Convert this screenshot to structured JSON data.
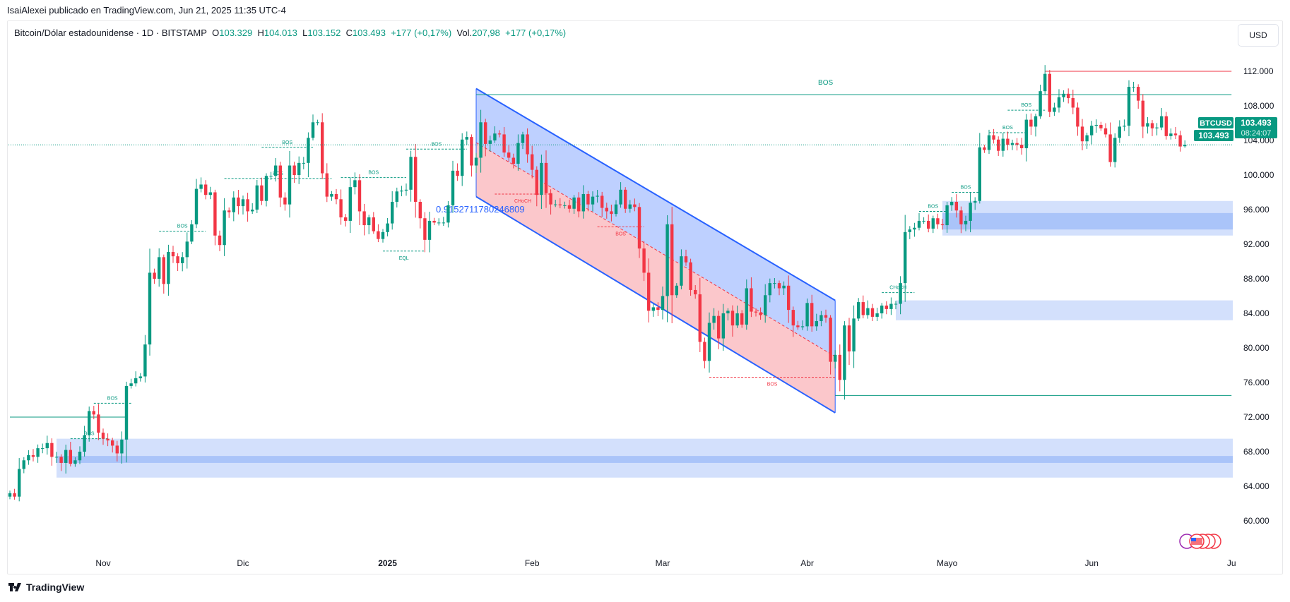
{
  "header": {
    "published": "IsaiAlexei publicado en TradingView.com, Jun 21, 2025 11:35 UTC-4"
  },
  "legend": {
    "symbol": "Bitcoin/Dólar estadounidense · 1D · BITSTAMP",
    "o_label": "O",
    "o": "103.329",
    "h_label": "H",
    "h": "104.013",
    "l_label": "L",
    "l": "103.152",
    "c_label": "C",
    "c": "103.493",
    "change": "+177 (+0,17%)",
    "vol_label": "Vol.",
    "vol": "207,98",
    "vol_change": "+177 (+0,17%)"
  },
  "currency_button": "USD",
  "price_tags": {
    "symbol": "BTCUSD",
    "price": "103.493",
    "countdown": "08:24:07",
    "last": "103.493"
  },
  "brand": "TradingView",
  "colors": {
    "up": "#089981",
    "down": "#f23645",
    "channel_upper": "#2962ff",
    "zone": "#bbd0fb",
    "accent": "#089981"
  },
  "chart_data": {
    "type": "candlestick",
    "timeframe": "1D",
    "start_date": "2024-10-12",
    "ylim": [
      58,
      114
    ],
    "y_ticks": [
      "60.000",
      "64.000",
      "68.000",
      "72.000",
      "76.000",
      "80.000",
      "84.000",
      "88.000",
      "92.000",
      "96.000",
      "100.000",
      "104.000",
      "108.000",
      "112.000"
    ],
    "x_ticks": [
      {
        "label": "Nov",
        "date": "2024-11-01"
      },
      {
        "label": "Dic",
        "date": "2024-12-01"
      },
      {
        "label": "2025",
        "date": "2025-01-01"
      },
      {
        "label": "Feb",
        "date": "2025-02-01"
      },
      {
        "label": "Mar",
        "date": "2025-03-01"
      },
      {
        "label": "Abr",
        "date": "2025-04-01"
      },
      {
        "label": "Mayo",
        "date": "2025-05-01"
      },
      {
        "label": "Jun",
        "date": "2025-06-01"
      },
      {
        "label": "Ju",
        "date": "2025-07-01"
      }
    ],
    "closes": [
      63.2,
      62.8,
      66.0,
      67.0,
      67.6,
      67.4,
      68.4,
      68.4,
      69.0,
      67.4,
      67.4,
      66.7,
      68.2,
      66.6,
      67.0,
      68.0,
      69.9,
      72.7,
      72.3,
      70.2,
      69.5,
      69.3,
      68.7,
      67.8,
      69.4,
      75.6,
      75.9,
      76.5,
      76.7,
      80.4,
      88.7,
      88.0,
      90.5,
      87.4,
      91.1,
      90.6,
      89.8,
      90.5,
      92.3,
      94.3,
      98.4,
      98.9,
      97.7,
      98.0,
      93.0,
      91.9,
      95.9,
      95.7,
      97.4,
      96.4,
      97.2,
      95.8,
      96.0,
      98.8,
      97.0,
      99.9,
      99.9,
      101.1,
      97.4,
      96.6,
      101.1,
      100.0,
      101.4,
      101.4,
      104.3,
      106.1,
      106.1,
      100.2,
      97.5,
      97.8,
      97.2,
      95.1,
      94.7,
      98.6,
      99.4,
      95.8,
      94.2,
      95.1,
      93.5,
      92.6,
      93.4,
      94.4,
      96.9,
      98.1,
      98.2,
      98.3,
      102.1,
      96.9,
      95.0,
      92.5,
      94.7,
      94.5,
      94.5,
      94.5,
      96.5,
      100.5,
      99.9,
      104.1,
      104.4,
      101.1,
      102.0,
      106.1,
      103.6,
      104.0,
      104.8,
      104.7,
      102.6,
      102.0,
      101.3,
      103.7,
      104.7,
      102.4,
      100.6,
      97.7,
      101.4,
      97.9,
      96.6,
      96.6,
      96.5,
      96.5,
      96.1,
      97.4,
      95.8,
      97.8,
      96.6,
      97.5,
      97.6,
      96.2,
      95.8,
      95.5,
      96.6,
      98.3,
      96.1,
      96.6,
      96.3,
      91.5,
      88.7,
      84.3,
      84.7,
      84.4,
      86.0,
      94.3,
      86.1,
      87.2,
      90.6,
      89.9,
      86.7,
      86.2,
      80.7,
      78.5,
      82.9,
      83.7,
      81.1,
      84.0,
      84.3,
      82.6,
      84.0,
      82.7,
      86.9,
      84.2,
      84.1,
      83.8,
      86.1,
      87.5,
      87.5,
      86.9,
      87.2,
      84.4,
      82.6,
      82.4,
      82.5,
      85.2,
      82.5,
      83.1,
      83.8,
      83.5,
      78.4,
      79.2,
      76.3,
      82.6,
      79.6,
      83.4,
      85.3,
      83.8,
      84.6,
      83.6,
      84.0,
      84.9,
      84.5,
      85.1,
      85.1,
      87.5,
      93.4,
      93.7,
      93.9,
      94.7,
      94.7,
      93.8,
      95.0,
      94.3,
      94.2,
      96.5,
      96.9,
      95.9,
      94.3,
      94.7,
      96.8,
      97.0,
      103.2,
      102.9,
      104.6,
      104.1,
      102.8,
      104.2,
      103.5,
      103.7,
      103.5,
      103.1,
      106.4,
      105.6,
      106.8,
      109.7,
      111.7,
      107.3,
      107.8,
      109.0,
      109.4,
      108.9,
      107.8,
      105.6,
      103.9,
      104.6,
      105.7,
      105.8,
      105.4,
      104.7,
      101.5,
      104.3,
      105.6,
      105.7,
      110.2,
      110.2,
      108.6,
      105.6,
      106.0,
      105.4,
      105.5,
      106.8,
      104.5,
      104.8,
      104.6,
      103.3,
      103.493
    ],
    "last_candle": {
      "open": 103.329,
      "high": 104.013,
      "low": 103.152,
      "close": 103.493
    },
    "current_price": 103.493,
    "channel": {
      "start": "2025-01-20",
      "end": "2025-04-07",
      "upper": [
        110.0,
        85.5
      ],
      "lower": [
        97.5,
        72.5
      ],
      "label": "0.9152711780246809"
    },
    "zones": [
      {
        "start": "2024-10-22",
        "low": 65.0,
        "high": 69.5,
        "core": [
          66.7,
          67.5
        ]
      },
      {
        "start": "2025-04-20",
        "low": 83.2,
        "high": 85.5
      },
      {
        "start": "2025-04-30",
        "low": 93.0,
        "high": 97.0,
        "core": [
          93.7,
          95.6
        ]
      }
    ],
    "levels": [
      {
        "start": "2024-10-12",
        "end": "2024-11-06",
        "price": 72.0,
        "color": "#089981"
      },
      {
        "start": "2025-01-20",
        "end": "2025-07-01",
        "price": 109.3,
        "color": "#089981",
        "label": "BOS"
      },
      {
        "start": "2025-05-22",
        "end": "2025-07-01",
        "price": 112.0,
        "color": "#f23645"
      },
      {
        "start": "2025-04-07",
        "end": "2025-07-01",
        "price": 74.5,
        "color": "#089981"
      }
    ],
    "structure": [
      {
        "label": "BOS",
        "start": "2024-10-25",
        "end": "2024-11-02",
        "price": 69.5,
        "color": "#089981"
      },
      {
        "label": "BOS",
        "start": "2024-10-30",
        "end": "2024-11-07",
        "price": 73.6,
        "color": "#089981"
      },
      {
        "label": "BOS",
        "start": "2024-11-13",
        "end": "2024-11-23",
        "price": 93.5,
        "color": "#089981"
      },
      {
        "label": "BOS",
        "start": "2024-11-27",
        "end": "2024-12-20",
        "price": 99.6,
        "color": "#089981"
      },
      {
        "label": "BOS",
        "start": "2024-12-05",
        "end": "2024-12-16",
        "price": 103.2,
        "color": "#089981"
      },
      {
        "label": "BOS",
        "start": "2024-12-22",
        "end": "2025-01-05",
        "price": 99.7,
        "color": "#089981"
      },
      {
        "label": "BOS",
        "start": "2025-01-05",
        "end": "2025-01-18",
        "price": 103.0,
        "color": "#089981"
      },
      {
        "label": "EQL",
        "start": "2024-12-31",
        "end": "2025-01-09",
        "price": 91.2,
        "color": "#089981",
        "below": true
      },
      {
        "label": "CHoCH",
        "start": "2025-01-24",
        "end": "2025-02-05",
        "price": 97.8,
        "color": "#f23645",
        "below": true
      },
      {
        "label": "BOS",
        "start": "2025-02-15",
        "end": "2025-02-25",
        "price": 94.0,
        "color": "#f23645",
        "below": true
      },
      {
        "label": "BOS",
        "start": "2025-03-11",
        "end": "2025-04-07",
        "price": 76.6,
        "color": "#f23645",
        "below": true
      },
      {
        "label": "CHoCH",
        "start": "2025-04-17",
        "end": "2025-04-24",
        "price": 86.4,
        "color": "#089981"
      },
      {
        "label": "BOS",
        "start": "2025-04-25",
        "end": "2025-05-01",
        "price": 95.8,
        "color": "#089981"
      },
      {
        "label": "BOS",
        "start": "2025-05-02",
        "end": "2025-05-08",
        "price": 98.0,
        "color": "#089981"
      },
      {
        "label": "BOS",
        "start": "2025-05-10",
        "end": "2025-05-18",
        "price": 104.9,
        "color": "#089981"
      },
      {
        "label": "BOS",
        "start": "2025-05-14",
        "end": "2025-05-22",
        "price": 107.5,
        "color": "#089981"
      }
    ]
  }
}
